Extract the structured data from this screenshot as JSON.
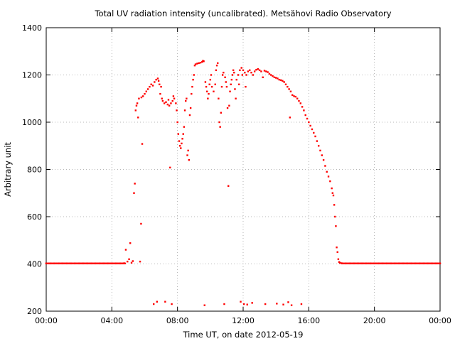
{
  "chart_data": {
    "type": "scatter",
    "title": "Total UV radiation intensity (uncalibrated). Metsähovi Radio Observatory",
    "xlabel": "Time UT, on date 2012-05-19",
    "ylabel": "Arbitrary unit",
    "x_unit": "hours UT",
    "xlim": [
      0,
      24
    ],
    "ylim": [
      200,
      1400
    ],
    "x_ticks": [
      0,
      4,
      8,
      12,
      16,
      20,
      24
    ],
    "x_tick_labels": [
      "00:00",
      "04:00",
      "08:00",
      "12:00",
      "16:00",
      "20:00",
      "00:00"
    ],
    "y_ticks": [
      200,
      400,
      600,
      800,
      1000,
      1200,
      1400
    ],
    "y_tick_labels": [
      "200",
      "400",
      "600",
      "800",
      "1000",
      "1200",
      "1400"
    ],
    "grid": true,
    "grid_style": "dotted",
    "marker_color": "#ff0000",
    "series": [
      {
        "points": [
          [
            0.0,
            402
          ],
          [
            0.25,
            402
          ],
          [
            0.5,
            402
          ],
          [
            0.75,
            402
          ],
          [
            1.0,
            402
          ],
          [
            1.25,
            402
          ],
          [
            1.5,
            402
          ],
          [
            1.75,
            402
          ],
          [
            2.0,
            402
          ],
          [
            2.25,
            402
          ],
          [
            2.5,
            402
          ],
          [
            2.75,
            402
          ],
          [
            3.0,
            402
          ],
          [
            3.25,
            402
          ],
          [
            3.5,
            402
          ],
          [
            3.75,
            402
          ],
          [
            4.0,
            402
          ],
          [
            4.25,
            402
          ],
          [
            4.5,
            402
          ],
          [
            4.75,
            403
          ],
          [
            4.85,
            460
          ],
          [
            4.95,
            410
          ],
          [
            5.05,
            420
          ],
          [
            5.12,
            488
          ],
          [
            5.2,
            405
          ],
          [
            5.28,
            412
          ],
          [
            5.35,
            700
          ],
          [
            5.4,
            740
          ],
          [
            5.45,
            1050
          ],
          [
            5.5,
            1070
          ],
          [
            5.55,
            1080
          ],
          [
            5.6,
            1020
          ],
          [
            5.65,
            1100
          ],
          [
            5.72,
            410
          ],
          [
            5.78,
            570
          ],
          [
            5.8,
            1105
          ],
          [
            5.85,
            908
          ],
          [
            5.9,
            1110
          ],
          [
            6.0,
            1120
          ],
          [
            6.1,
            1130
          ],
          [
            6.2,
            1140
          ],
          [
            6.3,
            1150
          ],
          [
            6.4,
            1160
          ],
          [
            6.5,
            1155
          ],
          [
            6.55,
            230
          ],
          [
            6.6,
            1170
          ],
          [
            6.7,
            1180
          ],
          [
            6.75,
            240
          ],
          [
            6.8,
            1185
          ],
          [
            6.85,
            1175
          ],
          [
            6.9,
            1160
          ],
          [
            6.95,
            1120
          ],
          [
            7.0,
            1150
          ],
          [
            7.05,
            1100
          ],
          [
            7.1,
            1090
          ],
          [
            7.2,
            1080
          ],
          [
            7.25,
            240
          ],
          [
            7.3,
            1085
          ],
          [
            7.4,
            1075
          ],
          [
            7.45,
            1095
          ],
          [
            7.5,
            1070
          ],
          [
            7.55,
            808
          ],
          [
            7.6,
            1080
          ],
          [
            7.65,
            230
          ],
          [
            7.7,
            1090
          ],
          [
            7.75,
            1110
          ],
          [
            7.8,
            1100
          ],
          [
            7.9,
            1080
          ],
          [
            7.95,
            1050
          ],
          [
            8.0,
            1000
          ],
          [
            8.05,
            950
          ],
          [
            8.1,
            920
          ],
          [
            8.15,
            900
          ],
          [
            8.2,
            890
          ],
          [
            8.25,
            910
          ],
          [
            8.3,
            930
          ],
          [
            8.35,
            950
          ],
          [
            8.4,
            980
          ],
          [
            8.45,
            1050
          ],
          [
            8.5,
            1090
          ],
          [
            8.55,
            1100
          ],
          [
            8.6,
            860
          ],
          [
            8.65,
            880
          ],
          [
            8.7,
            840
          ],
          [
            8.75,
            1030
          ],
          [
            8.8,
            1060
          ],
          [
            8.85,
            1120
          ],
          [
            8.9,
            1150
          ],
          [
            8.95,
            1180
          ],
          [
            9.0,
            1200
          ],
          [
            9.05,
            1240
          ],
          [
            9.1,
            1245
          ],
          [
            9.2,
            1248
          ],
          [
            9.3,
            1250
          ],
          [
            9.4,
            1252
          ],
          [
            9.5,
            1255
          ],
          [
            9.55,
            1260
          ],
          [
            9.6,
            1258
          ],
          [
            9.65,
            225
          ],
          [
            9.7,
            1170
          ],
          [
            9.75,
            1150
          ],
          [
            9.8,
            1130
          ],
          [
            9.85,
            1100
          ],
          [
            9.9,
            1120
          ],
          [
            9.95,
            1160
          ],
          [
            10.0,
            1180
          ],
          [
            10.05,
            1200
          ],
          [
            10.1,
            1150
          ],
          [
            10.2,
            1130
          ],
          [
            10.3,
            1160
          ],
          [
            10.35,
            1220
          ],
          [
            10.4,
            1240
          ],
          [
            10.45,
            1250
          ],
          [
            10.5,
            1100
          ],
          [
            10.55,
            1000
          ],
          [
            10.6,
            980
          ],
          [
            10.65,
            1040
          ],
          [
            10.7,
            1150
          ],
          [
            10.75,
            1200
          ],
          [
            10.8,
            1210
          ],
          [
            10.85,
            230
          ],
          [
            10.9,
            1190
          ],
          [
            10.95,
            1170
          ],
          [
            11.0,
            1150
          ],
          [
            11.05,
            1060
          ],
          [
            11.1,
            730
          ],
          [
            11.15,
            1070
          ],
          [
            11.2,
            1130
          ],
          [
            11.25,
            1160
          ],
          [
            11.3,
            1180
          ],
          [
            11.35,
            1200
          ],
          [
            11.4,
            1220
          ],
          [
            11.45,
            1210
          ],
          [
            11.5,
            1140
          ],
          [
            11.55,
            1100
          ],
          [
            11.6,
            1180
          ],
          [
            11.7,
            1200
          ],
          [
            11.75,
            1160
          ],
          [
            11.8,
            1220
          ],
          [
            11.85,
            240
          ],
          [
            11.9,
            1230
          ],
          [
            11.95,
            1200
          ],
          [
            12.0,
            1220
          ],
          [
            12.05,
            230
          ],
          [
            12.1,
            1210
          ],
          [
            12.15,
            1150
          ],
          [
            12.2,
            1200
          ],
          [
            12.25,
            228
          ],
          [
            12.3,
            1215
          ],
          [
            12.4,
            1220
          ],
          [
            12.5,
            1210
          ],
          [
            12.55,
            235
          ],
          [
            12.6,
            1200
          ],
          [
            12.7,
            1215
          ],
          [
            12.8,
            1222
          ],
          [
            12.9,
            1225
          ],
          [
            13.0,
            1220
          ],
          [
            13.1,
            1215
          ],
          [
            13.2,
            1190
          ],
          [
            13.3,
            1218
          ],
          [
            13.35,
            230
          ],
          [
            13.4,
            1215
          ],
          [
            13.5,
            1212
          ],
          [
            13.6,
            1205
          ],
          [
            13.7,
            1200
          ],
          [
            13.8,
            1195
          ],
          [
            13.9,
            1190
          ],
          [
            14.0,
            1188
          ],
          [
            14.05,
            232
          ],
          [
            14.1,
            1185
          ],
          [
            14.2,
            1180
          ],
          [
            14.3,
            1178
          ],
          [
            14.4,
            1175
          ],
          [
            14.45,
            228
          ],
          [
            14.5,
            1170
          ],
          [
            14.6,
            1160
          ],
          [
            14.7,
            1150
          ],
          [
            14.75,
            238
          ],
          [
            14.8,
            1140
          ],
          [
            14.85,
            1020
          ],
          [
            14.9,
            1130
          ],
          [
            14.95,
            225
          ],
          [
            15.0,
            1115
          ],
          [
            15.1,
            1110
          ],
          [
            15.2,
            1108
          ],
          [
            15.3,
            1100
          ],
          [
            15.4,
            1090
          ],
          [
            15.5,
            1080
          ],
          [
            15.55,
            230
          ],
          [
            15.6,
            1065
          ],
          [
            15.7,
            1050
          ],
          [
            15.8,
            1030
          ],
          [
            15.9,
            1015
          ],
          [
            16.0,
            1000
          ],
          [
            16.1,
            985
          ],
          [
            16.2,
            970
          ],
          [
            16.3,
            955
          ],
          [
            16.4,
            940
          ],
          [
            16.5,
            920
          ],
          [
            16.6,
            900
          ],
          [
            16.7,
            880
          ],
          [
            16.8,
            860
          ],
          [
            16.9,
            840
          ],
          [
            17.0,
            815
          ],
          [
            17.1,
            790
          ],
          [
            17.2,
            770
          ],
          [
            17.3,
            750
          ],
          [
            17.4,
            720
          ],
          [
            17.45,
            700
          ],
          [
            17.5,
            690
          ],
          [
            17.55,
            650
          ],
          [
            17.6,
            600
          ],
          [
            17.65,
            560
          ],
          [
            17.7,
            470
          ],
          [
            17.75,
            450
          ],
          [
            17.8,
            420
          ],
          [
            17.85,
            408
          ],
          [
            17.9,
            405
          ],
          [
            18.0,
            403
          ],
          [
            18.25,
            402
          ],
          [
            18.5,
            402
          ],
          [
            18.75,
            402
          ],
          [
            19.0,
            402
          ],
          [
            19.25,
            402
          ],
          [
            19.5,
            402
          ],
          [
            19.75,
            402
          ],
          [
            20.0,
            402
          ],
          [
            20.25,
            402
          ],
          [
            20.5,
            402
          ],
          [
            20.75,
            402
          ],
          [
            21.0,
            402
          ],
          [
            21.25,
            402
          ],
          [
            21.5,
            402
          ],
          [
            21.75,
            402
          ],
          [
            22.0,
            402
          ],
          [
            22.25,
            402
          ],
          [
            22.5,
            402
          ],
          [
            22.75,
            402
          ],
          [
            23.0,
            402
          ],
          [
            23.25,
            402
          ],
          [
            23.5,
            402
          ],
          [
            23.75,
            402
          ],
          [
            24.0,
            402
          ]
        ]
      }
    ]
  }
}
